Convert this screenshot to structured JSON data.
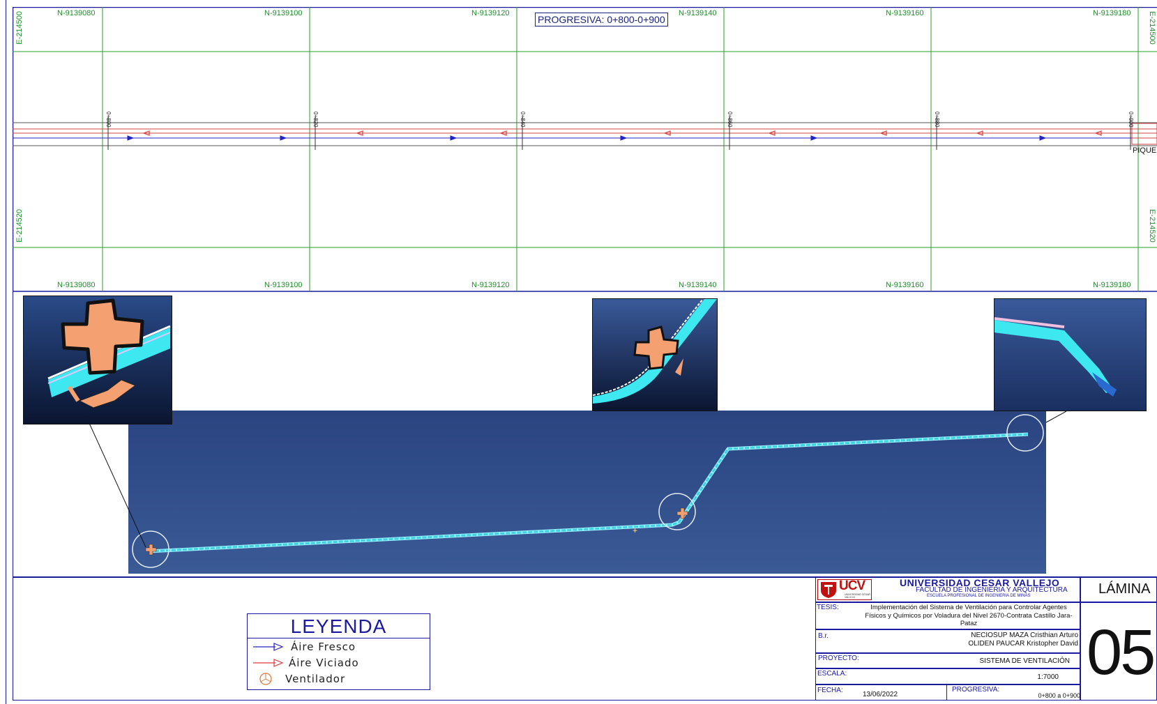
{
  "grid": {
    "north_top": [
      "N-9139080",
      "N-9139100",
      "N-9139120",
      "N-9139140",
      "N-9139160",
      "N-9139180"
    ],
    "north_bottom": [
      "N-9139080",
      "N-9139100",
      "N-9139120",
      "N-9139140",
      "N-9139160",
      "N-9139180"
    ],
    "east_left": [
      "E-214500",
      "E-214520"
    ],
    "east_right": [
      "E-214500",
      "E-214520"
    ]
  },
  "progresiva_header": "PROGRESIVA: 0+800-0+900",
  "chainage_ticks": [
    "0+800",
    "0+820",
    "0+840",
    "0+860",
    "0+880",
    "0+900"
  ],
  "pique_label": "PIQUE",
  "legend": {
    "title": "LEYENDA",
    "items": [
      {
        "label": "Áire  Fresco",
        "color": "#2323c8"
      },
      {
        "label": "Áire  Viciado",
        "color": "#e03a3a"
      },
      {
        "label": "Ventilador",
        "color": "#e07a40"
      }
    ]
  },
  "title_block": {
    "logo_text": "UCV",
    "logo_sub": "UNIVERSIDAD CÉSAR VALLEJO",
    "university": "UNIVERSIDAD CESAR VALLEJO",
    "faculty": "FACULTAD DE INGENIERIA Y ARQUITECTURA",
    "school": "ESCUELA PROFESIONAL DE INGENIERIA DE MINAS",
    "tesis_label": "TESIS:",
    "tesis_text": "Implementación del Sistema de Ventilación para Controlar Agentes Físicos y Químicos por Voladura del Nivel 2670-Contrata Castillo Jara-Pataz",
    "br_label": "B.r.",
    "authors": [
      "NECIOSUP MAZA Cristhian Arturo",
      "OLIDEN PAUCAR Kristopher David"
    ],
    "proyecto_label": "PROYECTO:",
    "proyecto_value": "SISTEMA DE VENTILACIÓN",
    "escala_label": "ESCALA:",
    "escala_value": "1:7000",
    "fecha_label": "FECHA:",
    "fecha_value": "13/06/2022",
    "progresiva_label": "PROGRESIVA:",
    "progresiva_value": "0+800 a 0+900",
    "lamina_label": "LÁMINA",
    "lamina_number": "05"
  },
  "colors": {
    "grid": "#2aa02a",
    "border": "#1a1aa0",
    "fresh_air": "#2323c8",
    "stale_air": "#e03a3a",
    "model_bg": "#2c4880",
    "duct": "#55e0f0",
    "fan": "#f4a070"
  }
}
